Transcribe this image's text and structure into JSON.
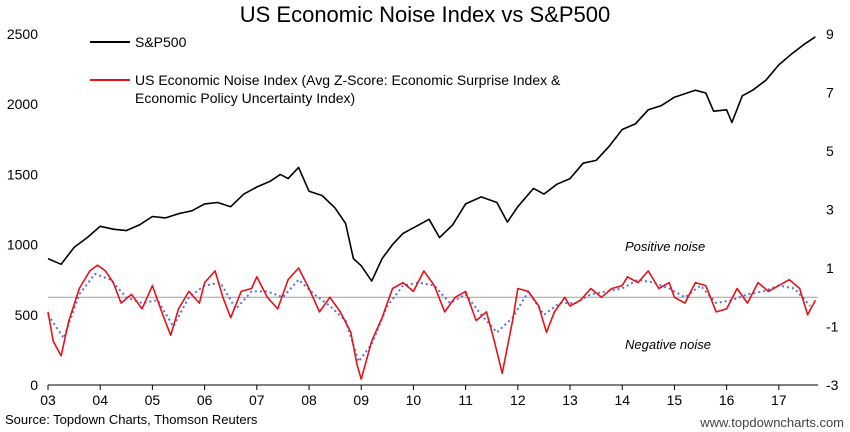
{
  "chart_data": {
    "type": "line",
    "title": "US Economic Noise Index vs S&P500",
    "x_ticks": [
      "03",
      "04",
      "05",
      "06",
      "07",
      "08",
      "09",
      "10",
      "11",
      "12",
      "13",
      "14",
      "15",
      "16",
      "17"
    ],
    "x_range": [
      2003.0,
      2017.75
    ],
    "y_left": {
      "range": [
        0,
        2500
      ],
      "ticks": [
        "0",
        "500",
        "1000",
        "1500",
        "2000",
        "2500"
      ]
    },
    "y_right": {
      "range": [
        -3,
        9
      ],
      "ticks": [
        "-3",
        "-1",
        "1",
        "3",
        "5",
        "7",
        "9"
      ]
    },
    "reference_line": {
      "axis": "right",
      "value": 0,
      "color": "#a0a0a0"
    },
    "series": [
      {
        "name": "S&P500",
        "axis": "left",
        "color": "#000000",
        "x": [
          2003.0,
          2003.25,
          2003.5,
          2003.75,
          2004.0,
          2004.25,
          2004.5,
          2004.75,
          2005.0,
          2005.25,
          2005.5,
          2005.75,
          2006.0,
          2006.25,
          2006.5,
          2006.75,
          2007.0,
          2007.25,
          2007.45,
          2007.6,
          2007.8,
          2008.0,
          2008.25,
          2008.5,
          2008.7,
          2008.85,
          2009.0,
          2009.2,
          2009.4,
          2009.6,
          2009.8,
          2010.0,
          2010.3,
          2010.5,
          2010.75,
          2011.0,
          2011.3,
          2011.6,
          2011.8,
          2012.0,
          2012.3,
          2012.5,
          2012.75,
          2013.0,
          2013.25,
          2013.5,
          2013.75,
          2014.0,
          2014.25,
          2014.5,
          2014.75,
          2015.0,
          2015.4,
          2015.6,
          2015.75,
          2016.0,
          2016.1,
          2016.3,
          2016.5,
          2016.75,
          2017.0,
          2017.25,
          2017.5,
          2017.7
        ],
        "values": [
          900,
          860,
          980,
          1050,
          1130,
          1110,
          1100,
          1140,
          1200,
          1190,
          1220,
          1240,
          1290,
          1300,
          1270,
          1360,
          1410,
          1450,
          1500,
          1470,
          1550,
          1380,
          1350,
          1260,
          1150,
          900,
          850,
          740,
          900,
          1000,
          1080,
          1120,
          1180,
          1050,
          1140,
          1290,
          1340,
          1300,
          1160,
          1270,
          1400,
          1360,
          1430,
          1470,
          1580,
          1600,
          1700,
          1820,
          1860,
          1960,
          1990,
          2050,
          2100,
          2080,
          1950,
          1960,
          1870,
          2060,
          2100,
          2170,
          2280,
          2360,
          2430,
          2480
        ]
      },
      {
        "name": "US Economic Noise Index (Avg Z-Score: Economic Surprise Index & Economic Policy Uncertainty Index)",
        "axis": "right",
        "color": "#e8111a",
        "x": [
          2003.0,
          2003.1,
          2003.25,
          2003.4,
          2003.6,
          2003.8,
          2003.95,
          2004.1,
          2004.25,
          2004.4,
          2004.6,
          2004.8,
          2005.0,
          2005.2,
          2005.35,
          2005.5,
          2005.7,
          2005.9,
          2006.0,
          2006.2,
          2006.35,
          2006.5,
          2006.7,
          2006.9,
          2007.0,
          2007.2,
          2007.4,
          2007.6,
          2007.8,
          2008.0,
          2008.2,
          2008.4,
          2008.6,
          2008.8,
          2008.92,
          2009.0,
          2009.2,
          2009.4,
          2009.6,
          2009.8,
          2010.0,
          2010.2,
          2010.4,
          2010.6,
          2010.8,
          2011.0,
          2011.2,
          2011.4,
          2011.55,
          2011.7,
          2011.9,
          2012.0,
          2012.2,
          2012.4,
          2012.55,
          2012.7,
          2012.9,
          2013.0,
          2013.2,
          2013.4,
          2013.6,
          2013.8,
          2014.0,
          2014.1,
          2014.3,
          2014.5,
          2014.7,
          2014.9,
          2015.0,
          2015.2,
          2015.4,
          2015.6,
          2015.8,
          2016.0,
          2016.2,
          2016.4,
          2016.6,
          2016.8,
          2017.0,
          2017.2,
          2017.4,
          2017.55,
          2017.7
        ],
        "values": [
          -0.5,
          -1.5,
          -2.0,
          -0.8,
          0.3,
          0.9,
          1.1,
          0.9,
          0.5,
          -0.2,
          0.1,
          -0.4,
          0.4,
          -0.6,
          -1.3,
          -0.4,
          0.2,
          -0.2,
          0.5,
          0.9,
          0.0,
          -0.7,
          0.2,
          0.3,
          0.7,
          0.0,
          -0.4,
          0.6,
          1.0,
          0.3,
          -0.5,
          0.0,
          -0.5,
          -1.2,
          -2.3,
          -2.8,
          -1.5,
          -0.7,
          0.3,
          0.5,
          0.2,
          0.9,
          0.4,
          -0.5,
          0.0,
          0.2,
          -0.8,
          -0.5,
          -1.5,
          -2.6,
          -0.8,
          0.3,
          0.2,
          -0.3,
          -1.2,
          -0.5,
          0.0,
          -0.3,
          -0.1,
          0.3,
          0.0,
          0.3,
          0.4,
          0.7,
          0.5,
          0.9,
          0.3,
          0.5,
          0.0,
          -0.2,
          0.5,
          0.4,
          -0.5,
          -0.4,
          0.3,
          -0.2,
          0.5,
          0.2,
          0.4,
          0.6,
          0.3,
          -0.6,
          -0.1
        ]
      },
      {
        "name": "",
        "axis": "right",
        "style": "dotted",
        "color": "#5b6fd6",
        "x": [
          2003.0,
          2003.3,
          2003.6,
          2003.9,
          2004.2,
          2004.5,
          2004.8,
          2005.1,
          2005.4,
          2005.7,
          2006.0,
          2006.3,
          2006.6,
          2006.9,
          2007.2,
          2007.5,
          2007.8,
          2008.1,
          2008.4,
          2008.7,
          2008.95,
          2009.2,
          2009.5,
          2009.8,
          2010.1,
          2010.4,
          2010.7,
          2011.0,
          2011.3,
          2011.6,
          2011.9,
          2012.2,
          2012.5,
          2012.8,
          2013.1,
          2013.4,
          2013.7,
          2014.0,
          2014.3,
          2014.6,
          2014.9,
          2015.2,
          2015.5,
          2015.8,
          2016.1,
          2016.4,
          2016.7,
          2017.0,
          2017.3,
          2017.6
        ],
        "values": [
          -0.6,
          -1.4,
          0.1,
          0.8,
          0.6,
          0.0,
          -0.2,
          -0.1,
          -1.0,
          0.0,
          0.4,
          0.5,
          -0.4,
          0.2,
          0.2,
          0.0,
          0.6,
          0.1,
          -0.3,
          -0.8,
          -2.2,
          -1.6,
          -0.3,
          0.4,
          0.5,
          0.4,
          -0.2,
          0.1,
          -0.6,
          -1.2,
          -0.7,
          0.2,
          -0.6,
          -0.2,
          -0.2,
          0.1,
          0.2,
          0.3,
          0.6,
          0.5,
          0.3,
          0.0,
          0.4,
          -0.2,
          -0.1,
          0.1,
          0.2,
          0.4,
          0.3,
          -0.3
        ]
      }
    ],
    "annotations": [
      "Positive noise",
      "Negative noise"
    ],
    "source": "Source: Topdown Charts, Thomson Reuters",
    "watermark": "www.topdowncharts.com"
  }
}
